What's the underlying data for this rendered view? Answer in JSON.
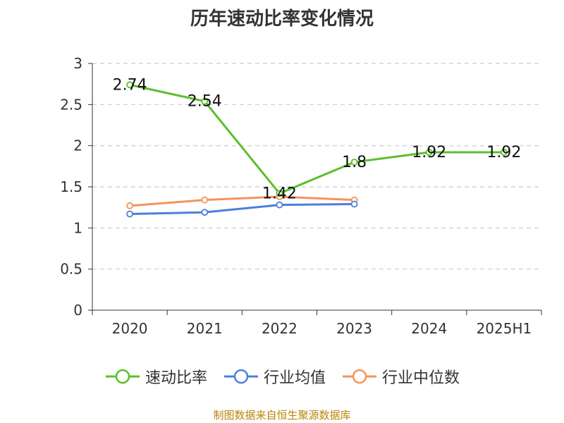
{
  "title": "历年速动比率变化情况",
  "source_note": "制图数据来自恒生聚源数据库",
  "chart_data": {
    "type": "line",
    "title": "历年速动比率变化情况",
    "categories": [
      "2020",
      "2021",
      "2022",
      "2023",
      "2024",
      "2025H1"
    ],
    "ylim": [
      0,
      3
    ],
    "yticks": [
      "0",
      "0.5",
      "1",
      "1.5",
      "2",
      "2.5",
      "3"
    ],
    "grid": true,
    "legend_position": "bottom",
    "series": [
      {
        "name": "速动比率",
        "color": "#5cbf2a",
        "values": [
          2.74,
          2.54,
          1.42,
          1.8,
          1.92,
          1.92
        ],
        "labels": [
          "2.74",
          "2.54",
          "1.42",
          "1.8",
          "1.92",
          "1.92"
        ]
      },
      {
        "name": "行业均值",
        "color": "#4a7fdc",
        "values": [
          1.17,
          1.19,
          1.28,
          1.29,
          null,
          null
        ]
      },
      {
        "name": "行业中位数",
        "color": "#f5935a",
        "values": [
          1.27,
          1.34,
          1.38,
          1.34,
          null,
          null
        ]
      }
    ]
  }
}
